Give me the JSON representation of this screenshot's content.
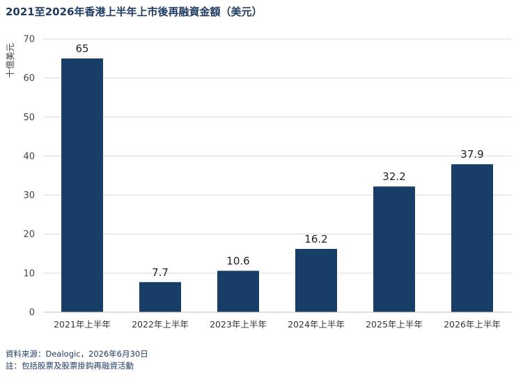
{
  "chart_data": {
    "type": "bar",
    "title": "2021至2026年香港上半年上市後再融資金額（美元）",
    "ylabel": "十億美元",
    "xlabel": "",
    "categories": [
      "2021年上半年",
      "2022年上半年",
      "2023年上半年",
      "2024年上半年",
      "2025年上半年",
      "2026年上半年"
    ],
    "values": [
      65,
      7.7,
      10.6,
      16.2,
      32.2,
      37.9
    ],
    "data_labels": [
      "65",
      "7.7",
      "10.6",
      "16.2",
      "32.2",
      "37.9"
    ],
    "ylim": [
      0,
      70
    ],
    "yticks": [
      0,
      10,
      20,
      30,
      40,
      50,
      60,
      70
    ],
    "grid": true,
    "legend": "none",
    "bar_color": "#163e66"
  },
  "footer": {
    "source": "資料來源：Dealogic，2026年6月30日",
    "note": "註：包括股票及股票掛鈎再融資活動"
  }
}
